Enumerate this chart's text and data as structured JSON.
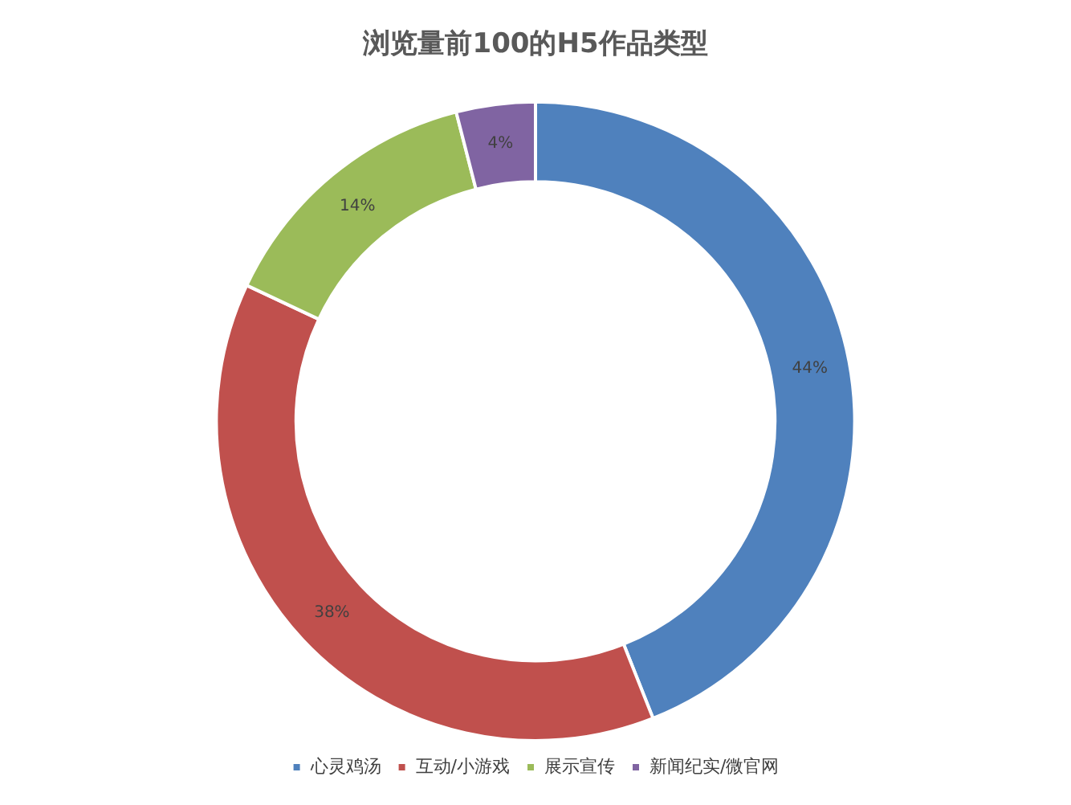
{
  "chart_data": {
    "type": "donut",
    "title": "浏览量前100的H5作品类型",
    "categories": [
      "心灵鸡汤",
      "互动/小游戏",
      "展示宣传",
      "新闻纪实/微官网"
    ],
    "values": [
      44,
      38,
      14,
      4
    ],
    "colors": [
      "#4f81bd",
      "#c0504d",
      "#9bbb59",
      "#8064a2"
    ],
    "value_labels": [
      "44%",
      "38%",
      "14%",
      "4%"
    ],
    "legend": "bottom"
  }
}
